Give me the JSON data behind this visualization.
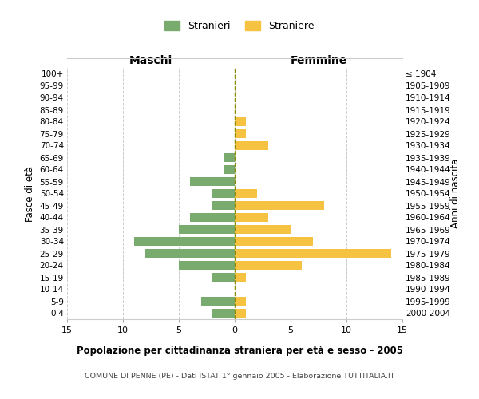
{
  "age_groups": [
    "0-4",
    "5-9",
    "10-14",
    "15-19",
    "20-24",
    "25-29",
    "30-34",
    "35-39",
    "40-44",
    "45-49",
    "50-54",
    "55-59",
    "60-64",
    "65-69",
    "70-74",
    "75-79",
    "80-84",
    "85-89",
    "90-94",
    "95-99",
    "100+"
  ],
  "birth_years": [
    "2000-2004",
    "1995-1999",
    "1990-1994",
    "1985-1989",
    "1980-1984",
    "1975-1979",
    "1970-1974",
    "1965-1969",
    "1960-1964",
    "1955-1959",
    "1950-1954",
    "1945-1949",
    "1940-1944",
    "1935-1939",
    "1930-1934",
    "1925-1929",
    "1920-1924",
    "1915-1919",
    "1910-1914",
    "1905-1909",
    "≤ 1904"
  ],
  "males": [
    2,
    3,
    0,
    2,
    5,
    8,
    9,
    5,
    4,
    2,
    2,
    4,
    1,
    1,
    0,
    0,
    0,
    0,
    0,
    0,
    0
  ],
  "females": [
    1,
    1,
    0,
    1,
    6,
    14,
    7,
    5,
    3,
    8,
    2,
    0,
    0,
    0,
    3,
    1,
    1,
    0,
    0,
    0,
    0
  ],
  "male_color": "#7aab6e",
  "female_color": "#f5c242",
  "center_line_color": "#8b8b00",
  "grid_color": "#cccccc",
  "bg_color": "#ffffff",
  "title": "Popolazione per cittadinanza straniera per età e sesso - 2005",
  "subtitle": "COMUNE DI PENNE (PE) - Dati ISTAT 1° gennaio 2005 - Elaborazione TUTTITALIA.IT",
  "xlabel_left": "Maschi",
  "xlabel_right": "Femmine",
  "ylabel_left": "Fasce di età",
  "ylabel_right": "Anni di nascita",
  "legend_male": "Stranieri",
  "legend_female": "Straniere",
  "xlim": 15
}
